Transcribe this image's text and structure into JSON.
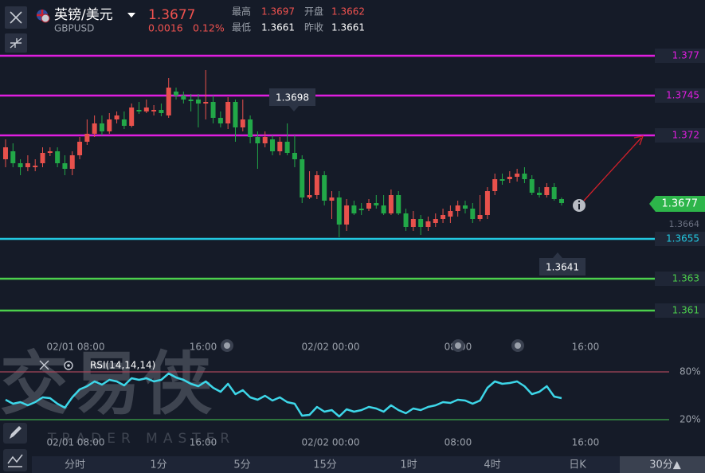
{
  "header": {
    "symbol": "英镑/美元",
    "code": "GBPUSD",
    "price": "1.3677",
    "change": "0.0016",
    "change_pct": "0.12%",
    "stats": [
      {
        "label": "最高",
        "value": "1.3697"
      },
      {
        "label": "开盘",
        "value": "1.3662"
      },
      {
        "label": "最低",
        "value": "1.3661"
      },
      {
        "label": "昨收",
        "value": "1.3661"
      }
    ]
  },
  "chart_data": [
    {
      "type": "candlestick",
      "up_color": "#e8514c",
      "down_color": "#22a848",
      "open": [
        1.3705,
        1.371,
        1.37025,
        1.37,
        1.37,
        1.37025,
        1.3709,
        1.371,
        1.37025,
        1.3699,
        1.37075,
        1.3716,
        1.3721,
        1.37275,
        1.37225,
        1.373,
        1.373,
        1.3726,
        1.3736,
        1.3735,
        1.3735,
        1.3736,
        1.37325,
        1.37475,
        1.3745,
        1.37425,
        1.37425,
        1.374,
        1.3741,
        1.3731,
        1.37275,
        1.3741,
        1.3725,
        1.373,
        1.3719,
        1.3715,
        1.37175,
        1.371,
        1.3716,
        1.3709,
        1.3705,
        1.3681,
        1.36825,
        1.3695,
        1.3679,
        1.3681,
        1.3664,
        1.3676,
        1.3674,
        1.3674,
        1.36775,
        1.3676,
        1.3671,
        1.36825,
        1.3671,
        1.36625,
        1.36675,
        1.36625,
        1.3665,
        1.36675,
        1.3669,
        1.36725,
        1.3676,
        1.3674,
        1.36675,
        1.367,
        1.3685,
        1.36925,
        1.36925,
        1.3694,
        1.3696,
        1.36925,
        1.3684,
        1.36825,
        1.36875,
        1.368
      ],
      "high": [
        1.37175,
        1.3715,
        1.3705,
        1.37075,
        1.3705,
        1.37125,
        1.37125,
        1.37125,
        1.37075,
        1.371,
        1.3719,
        1.373,
        1.37325,
        1.37325,
        1.3734,
        1.3735,
        1.3735,
        1.374,
        1.3741,
        1.37425,
        1.3739,
        1.374,
        1.3756,
        1.375,
        1.37475,
        1.3746,
        1.3746,
        1.3761,
        1.3745,
        1.3735,
        1.3744,
        1.37425,
        1.37425,
        1.37325,
        1.37225,
        1.37225,
        1.372,
        1.3719,
        1.37275,
        1.372,
        1.37075,
        1.36975,
        1.36975,
        1.36975,
        1.3685,
        1.3685,
        1.368,
        1.3679,
        1.36775,
        1.368,
        1.36825,
        1.36825,
        1.3686,
        1.3685,
        1.3674,
        1.36725,
        1.367,
        1.3669,
        1.3671,
        1.3674,
        1.3676,
        1.3679,
        1.3679,
        1.36775,
        1.36825,
        1.36875,
        1.3696,
        1.3696,
        1.36975,
        1.3699,
        1.37,
        1.3695,
        1.36875,
        1.369,
        1.369,
        1.3681
      ],
      "low": [
        1.37,
        1.37,
        1.3695,
        1.36975,
        1.36975,
        1.37,
        1.3707,
        1.37,
        1.3695,
        1.3695,
        1.3705,
        1.3714,
        1.3719,
        1.372,
        1.3721,
        1.37275,
        1.3724,
        1.3725,
        1.37335,
        1.3734,
        1.37325,
        1.3732,
        1.3731,
        1.37425,
        1.374,
        1.3735,
        1.3725,
        1.373,
        1.37275,
        1.3725,
        1.3724,
        1.3716,
        1.37225,
        1.3715,
        1.3699,
        1.37125,
        1.37075,
        1.37075,
        1.37075,
        1.37,
        1.36775,
        1.368,
        1.368,
        1.3676,
        1.36675,
        1.3656,
        1.366,
        1.367,
        1.367,
        1.36725,
        1.3674,
        1.367,
        1.367,
        1.367,
        1.366,
        1.366,
        1.36575,
        1.366,
        1.36625,
        1.3665,
        1.3665,
        1.3669,
        1.3671,
        1.3665,
        1.3666,
        1.36675,
        1.36825,
        1.3689,
        1.369,
        1.3691,
        1.369,
        1.36825,
        1.3681,
        1.3681,
        1.3679,
        1.3676
      ],
      "close": [
        1.37125,
        1.37025,
        1.37,
        1.37025,
        1.3701,
        1.3709,
        1.371,
        1.37025,
        1.3699,
        1.37075,
        1.3716,
        1.3721,
        1.37275,
        1.37225,
        1.373,
        1.37325,
        1.3726,
        1.37375,
        1.3735,
        1.37375,
        1.3736,
        1.3734,
        1.375,
        1.3745,
        1.37425,
        1.37415,
        1.374,
        1.3741,
        1.3731,
        1.37275,
        1.3741,
        1.3725,
        1.373,
        1.3719,
        1.3715,
        1.3719,
        1.371,
        1.3716,
        1.3709,
        1.3705,
        1.3681,
        1.36825,
        1.3695,
        1.3679,
        1.3681,
        1.3664,
        1.3676,
        1.3671,
        1.3673,
        1.36775,
        1.3676,
        1.3671,
        1.36825,
        1.3671,
        1.36625,
        1.36675,
        1.36625,
        1.3666,
        1.36675,
        1.367,
        1.36725,
        1.3676,
        1.3674,
        1.36675,
        1.367,
        1.3685,
        1.36925,
        1.36915,
        1.3694,
        1.3696,
        1.36925,
        1.3684,
        1.36825,
        1.36875,
        1.368,
        1.36775
      ],
      "ylim": [
        1.3595,
        1.3805
      ],
      "xlim": [
        -0.75,
        87.36
      ],
      "xticks": [
        {
          "value": 9.46,
          "label": "02/01 08:00"
        },
        {
          "value": 26.65,
          "label": "16:00"
        },
        {
          "value": 43.84,
          "label": "02/02 00:00"
        },
        {
          "value": 61.03,
          "label": "08:00"
        },
        {
          "value": 78.22,
          "label": "16:00"
        }
      ],
      "levels": [
        {
          "value": 1.377,
          "color": "#e01ee0"
        },
        {
          "value": 1.3745,
          "color": "#e01ee0"
        },
        {
          "value": 1.372,
          "color": "#e01ee0"
        },
        {
          "value": 1.3655,
          "color": "#22c8e0"
        },
        {
          "value": 1.363,
          "color": "#4cd04c"
        },
        {
          "value": 1.361,
          "color": "#4cd04c"
        }
      ],
      "last_price": 1.3677,
      "price_label": 1.3664,
      "high_marker": 1.3698,
      "low_marker": 1.3641
    },
    {
      "type": "line",
      "title": "RSI(14,14,14)",
      "ylim": [
        0,
        100
      ],
      "xlim": [
        -0.75,
        87.36
      ],
      "yticks": [
        {
          "value": 80,
          "label": "80%"
        },
        {
          "value": 20,
          "label": "20%"
        }
      ],
      "tick_colors": [
        "#a8465a",
        "#3fa84a"
      ],
      "xticks": [
        {
          "value": 9.46,
          "label": "02/01 08:00"
        },
        {
          "value": 26.65,
          "label": "16:00"
        },
        {
          "value": 43.84,
          "label": "02/02 00:00"
        },
        {
          "value": 61.03,
          "label": "08:00"
        },
        {
          "value": 78.22,
          "label": "16:00"
        }
      ],
      "series": [
        {
          "color": "#3dd6e8",
          "values": [
            45,
            40,
            42,
            38,
            42,
            48,
            47,
            40,
            35,
            48,
            58,
            62,
            68,
            64,
            70,
            68,
            63,
            72,
            70,
            72,
            68,
            70,
            78,
            73,
            70,
            65,
            62,
            68,
            60,
            55,
            65,
            52,
            57,
            48,
            45,
            50,
            44,
            48,
            42,
            40,
            25,
            26,
            36,
            30,
            32,
            24,
            33,
            30,
            32,
            36,
            34,
            30,
            38,
            32,
            28,
            34,
            32,
            36,
            38,
            42,
            41,
            45,
            44,
            40,
            44,
            60,
            68,
            65,
            66,
            68,
            62,
            52,
            55,
            62,
            49,
            47
          ]
        }
      ]
    }
  ],
  "watermark": {
    "title": "交易侠",
    "subtitle": "TRADER MASTER"
  },
  "timeframes": [
    "分时",
    "1分",
    "5分",
    "15分",
    "1时",
    "4时",
    "日K",
    "30分▲"
  ],
  "selected": 7
}
